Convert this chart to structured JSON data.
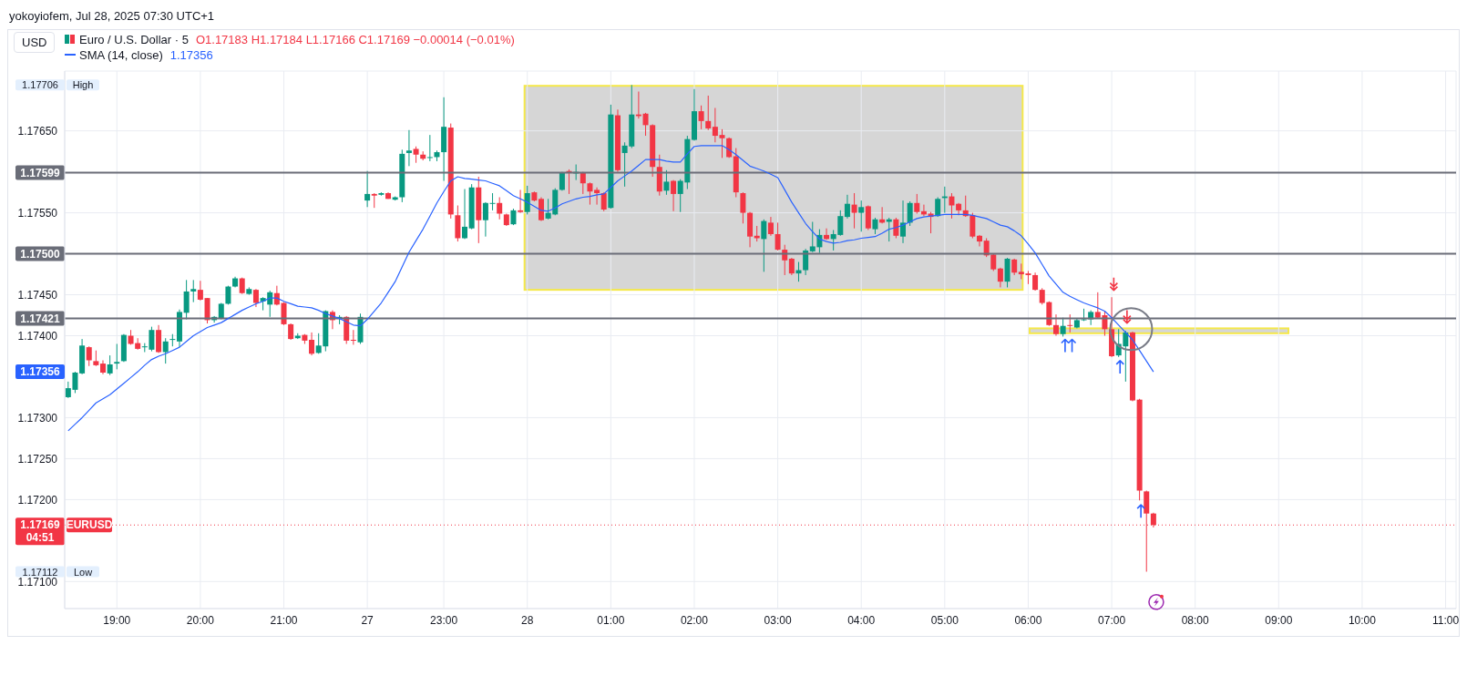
{
  "chart_data": {
    "type": "candlestick",
    "title": "yokoyiofem, Jul 28, 2025 07:30 UTC+1",
    "categories": [
      null,
      null,
      null,
      null,
      null,
      null,
      null,
      "19:00",
      null,
      null,
      null,
      null,
      null,
      null,
      null,
      null,
      null,
      null,
      null,
      "20:00",
      null,
      null,
      null,
      null,
      null,
      null,
      null,
      null,
      null,
      null,
      null,
      "21:00",
      null,
      null,
      null,
      null,
      null,
      null,
      null,
      null,
      null,
      null,
      null,
      "27",
      null,
      null,
      null,
      null,
      null,
      null,
      null,
      null,
      null,
      null,
      "23:00",
      null,
      null,
      null,
      null,
      null,
      null,
      null,
      null,
      null,
      null,
      null,
      "28",
      null,
      null,
      null,
      null,
      null,
      null,
      null,
      null,
      null,
      null,
      null,
      "01:00",
      null,
      null,
      null,
      null,
      null,
      null,
      null,
      null,
      null,
      null,
      null,
      "02:00",
      null,
      null,
      null,
      null,
      null,
      null,
      null,
      null,
      null,
      null,
      null,
      "03:00",
      null,
      null,
      null,
      null,
      null,
      null,
      null,
      null,
      null,
      null,
      null,
      "04:00",
      null,
      null,
      null,
      null,
      null,
      null,
      null,
      null,
      null,
      null,
      null,
      "05:00",
      null,
      null,
      null,
      null,
      null,
      null,
      null,
      null,
      null,
      null,
      null,
      "06:00",
      null,
      null,
      null,
      null,
      null,
      null,
      null,
      null,
      null,
      null,
      null,
      "07:00",
      null,
      null,
      null,
      null,
      null,
      null,
      null,
      null,
      null,
      null,
      null,
      "08:00",
      null,
      null,
      null,
      null,
      null,
      null,
      null,
      null,
      null,
      null,
      null,
      "09:00",
      null,
      null,
      null,
      null,
      null,
      null,
      null,
      null,
      null,
      null,
      null,
      "10:00",
      null,
      null,
      null,
      null,
      null,
      null,
      null,
      null,
      null,
      null,
      null,
      "11:00",
      null
    ],
    "series": [
      {
        "type": "candlestick",
        "name": "Euro / U.S. Dollar · 5",
        "ohlc": [
          [
            1.17325,
            1.17344,
            1.17324,
            1.17336
          ],
          [
            1.17334,
            1.17356,
            1.1733,
            1.17355
          ],
          [
            1.17354,
            1.17396,
            1.17353,
            1.17388
          ],
          [
            1.17386,
            1.17387,
            1.17363,
            1.1737
          ],
          [
            1.17369,
            1.17382,
            1.17363,
            1.17364
          ],
          [
            1.17366,
            1.1737,
            1.17353,
            1.17355
          ],
          [
            1.17354,
            1.17376,
            1.17352,
            1.17365
          ],
          [
            1.17366,
            1.1739,
            1.17359,
            1.17368
          ],
          [
            1.17369,
            1.17402,
            1.17368,
            1.17401
          ],
          [
            1.174,
            1.17407,
            1.17389,
            1.1739
          ],
          [
            1.17391,
            1.17397,
            1.17383,
            1.17384
          ],
          [
            1.17386,
            1.17391,
            1.1738,
            1.17387
          ],
          [
            1.17383,
            1.17411,
            1.17381,
            1.17407
          ],
          [
            1.17407,
            1.17413,
            1.17379,
            1.1738
          ],
          [
            1.1738,
            1.17397,
            1.17366,
            1.17393
          ],
          [
            1.17395,
            1.17402,
            1.17387,
            1.17396
          ],
          [
            1.17393,
            1.17432,
            1.17386,
            1.17429
          ],
          [
            1.17428,
            1.17468,
            1.1742,
            1.17454
          ],
          [
            1.17454,
            1.17468,
            1.17441,
            1.17457
          ],
          [
            1.17456,
            1.17467,
            1.17443,
            1.17444
          ],
          [
            1.17446,
            1.17446,
            1.17415,
            1.17419
          ],
          [
            1.17419,
            1.17424,
            1.17416,
            1.17423
          ],
          [
            1.17421,
            1.1744,
            1.1742,
            1.17439
          ],
          [
            1.17439,
            1.17461,
            1.17438,
            1.1746
          ],
          [
            1.1746,
            1.17472,
            1.17459,
            1.1747
          ],
          [
            1.1747,
            1.17471,
            1.17451,
            1.17452
          ],
          [
            1.17451,
            1.17459,
            1.1745,
            1.17457
          ],
          [
            1.17456,
            1.17457,
            1.17435,
            1.1744
          ],
          [
            1.17442,
            1.17447,
            1.17431,
            1.17446
          ],
          [
            1.17438,
            1.17455,
            1.17423,
            1.17453
          ],
          [
            1.17452,
            1.17461,
            1.17437,
            1.17438
          ],
          [
            1.1744,
            1.17441,
            1.17413,
            1.17414
          ],
          [
            1.17414,
            1.17415,
            1.17395,
            1.17396
          ],
          [
            1.17397,
            1.17403,
            1.17396,
            1.174
          ],
          [
            1.17401,
            1.17402,
            1.1739,
            1.17394
          ],
          [
            1.17395,
            1.17404,
            1.17376,
            1.17378
          ],
          [
            1.17379,
            1.17403,
            1.17378,
            1.17388
          ],
          [
            1.17387,
            1.17431,
            1.17381,
            1.1743
          ],
          [
            1.17429,
            1.17431,
            1.17408,
            1.17419
          ],
          [
            1.17421,
            1.17425,
            1.17414,
            1.17423
          ],
          [
            1.17423,
            1.17424,
            1.1739,
            1.17394
          ],
          [
            1.17395,
            1.17407,
            1.17389,
            1.17394
          ],
          [
            1.17392,
            1.17427,
            1.1739,
            1.17423
          ],
          [
            1.17565,
            1.17601,
            1.17557,
            1.17573
          ],
          [
            1.17573,
            1.17574,
            1.17556,
            1.17571
          ],
          [
            1.17572,
            1.17575,
            1.17571,
            1.17574
          ],
          [
            1.17574,
            1.17575,
            1.17567,
            1.17567
          ],
          [
            1.17566,
            1.1757,
            1.17565,
            1.17569
          ],
          [
            1.17569,
            1.17627,
            1.17563,
            1.17622
          ],
          [
            1.17623,
            1.17651,
            1.17607,
            1.17626
          ],
          [
            1.17628,
            1.17631,
            1.17611,
            1.17621
          ],
          [
            1.17621,
            1.17625,
            1.17614,
            1.17616
          ],
          [
            1.17617,
            1.17645,
            1.17613,
            1.17618
          ],
          [
            1.17618,
            1.17626,
            1.17613,
            1.17624
          ],
          [
            1.17624,
            1.17691,
            1.17589,
            1.17655
          ],
          [
            1.17654,
            1.17659,
            1.17543,
            1.17548
          ],
          [
            1.17547,
            1.17559,
            1.17515,
            1.17519
          ],
          [
            1.17519,
            1.17579,
            1.17518,
            1.17533
          ],
          [
            1.17531,
            1.17585,
            1.1753,
            1.17581
          ],
          [
            1.17581,
            1.17594,
            1.17513,
            1.17541
          ],
          [
            1.17541,
            1.17563,
            1.17521,
            1.17562
          ],
          [
            1.17561,
            1.17574,
            1.17553,
            1.17562
          ],
          [
            1.17562,
            1.17569,
            1.17542,
            1.17549
          ],
          [
            1.17548,
            1.17549,
            1.17534,
            1.17535
          ],
          [
            1.17536,
            1.17555,
            1.17535,
            1.17553
          ],
          [
            1.17553,
            1.17578,
            1.1755,
            1.17551
          ],
          [
            1.17551,
            1.17583,
            1.17548,
            1.17574
          ],
          [
            1.17575,
            1.17576,
            1.17564,
            1.17565
          ],
          [
            1.17567,
            1.17569,
            1.1754,
            1.17541
          ],
          [
            1.17543,
            1.17567,
            1.17542,
            1.1755
          ],
          [
            1.17548,
            1.1758,
            1.17547,
            1.17578
          ],
          [
            1.17578,
            1.176,
            1.17577,
            1.17599
          ],
          [
            1.17601,
            1.17603,
            1.17573,
            1.17599
          ],
          [
            1.17598,
            1.17609,
            1.1759,
            1.176
          ],
          [
            1.17599,
            1.176,
            1.17573,
            1.17586
          ],
          [
            1.17586,
            1.17587,
            1.1756,
            1.17576
          ],
          [
            1.17578,
            1.17581,
            1.1756,
            1.17574
          ],
          [
            1.17574,
            1.17575,
            1.17552,
            1.17554
          ],
          [
            1.17556,
            1.17682,
            1.17555,
            1.1767
          ],
          [
            1.17669,
            1.17676,
            1.176,
            1.17602
          ],
          [
            1.17623,
            1.17636,
            1.17582,
            1.17632
          ],
          [
            1.17631,
            1.17706,
            1.17629,
            1.1767
          ],
          [
            1.1767,
            1.17698,
            1.17665,
            1.17668
          ],
          [
            1.17671,
            1.17672,
            1.17644,
            1.17657
          ],
          [
            1.17657,
            1.17658,
            1.17594,
            1.17606
          ],
          [
            1.17606,
            1.17621,
            1.17571,
            1.17576
          ],
          [
            1.17577,
            1.17602,
            1.17572,
            1.17588
          ],
          [
            1.17589,
            1.1759,
            1.17552,
            1.17573
          ],
          [
            1.17573,
            1.17591,
            1.17551,
            1.17589
          ],
          [
            1.17587,
            1.17644,
            1.17579,
            1.1764
          ],
          [
            1.17639,
            1.17701,
            1.17638,
            1.17674
          ],
          [
            1.17674,
            1.17681,
            1.17652,
            1.17662
          ],
          [
            1.17662,
            1.17693,
            1.17651,
            1.17653
          ],
          [
            1.17655,
            1.17678,
            1.17636,
            1.17644
          ],
          [
            1.17645,
            1.17652,
            1.17617,
            1.17641
          ],
          [
            1.17641,
            1.17642,
            1.17617,
            1.17618
          ],
          [
            1.17619,
            1.17629,
            1.17569,
            1.17575
          ],
          [
            1.17574,
            1.17575,
            1.17537,
            1.1755
          ],
          [
            1.1755,
            1.17551,
            1.17508,
            1.17521
          ],
          [
            1.17522,
            1.17534,
            1.17515,
            1.17519
          ],
          [
            1.17518,
            1.17542,
            1.17478,
            1.1754
          ],
          [
            1.17538,
            1.17545,
            1.17522,
            1.17524
          ],
          [
            1.17524,
            1.17538,
            1.17504,
            1.17505
          ],
          [
            1.17505,
            1.17511,
            1.17474,
            1.17492
          ],
          [
            1.17494,
            1.17495,
            1.17474,
            1.17476
          ],
          [
            1.17476,
            1.1749,
            1.17466,
            1.1748
          ],
          [
            1.1748,
            1.17506,
            1.17474,
            1.17504
          ],
          [
            1.17503,
            1.17539,
            1.17502,
            1.17509
          ],
          [
            1.17508,
            1.1753,
            1.17501,
            1.17523
          ],
          [
            1.17523,
            1.17531,
            1.17517,
            1.17518
          ],
          [
            1.17518,
            1.17529,
            1.17504,
            1.17524
          ],
          [
            1.17523,
            1.17553,
            1.17522,
            1.17546
          ],
          [
            1.17545,
            1.17572,
            1.17543,
            1.17561
          ],
          [
            1.1756,
            1.17574,
            1.17531,
            1.1755
          ],
          [
            1.1755,
            1.17565,
            1.17527,
            1.17557
          ],
          [
            1.17558,
            1.17559,
            1.17529,
            1.17531
          ],
          [
            1.1753,
            1.17544,
            1.17524,
            1.17542
          ],
          [
            1.17542,
            1.17557,
            1.17537,
            1.17538
          ],
          [
            1.17539,
            1.17544,
            1.17515,
            1.17542
          ],
          [
            1.17542,
            1.17544,
            1.17519,
            1.17522
          ],
          [
            1.17521,
            1.17565,
            1.17513,
            1.17538
          ],
          [
            1.17538,
            1.17564,
            1.17534,
            1.17562
          ],
          [
            1.17562,
            1.17573,
            1.17549,
            1.17551
          ],
          [
            1.17552,
            1.1756,
            1.17546,
            1.17548
          ],
          [
            1.17549,
            1.17551,
            1.17525,
            1.17545
          ],
          [
            1.17546,
            1.17569,
            1.17545,
            1.17567
          ],
          [
            1.17568,
            1.17582,
            1.1755,
            1.1757
          ],
          [
            1.1757,
            1.17574,
            1.17543,
            1.17559
          ],
          [
            1.17561,
            1.17562,
            1.17547,
            1.17553
          ],
          [
            1.17553,
            1.17571,
            1.17545,
            1.17546
          ],
          [
            1.17547,
            1.1755,
            1.17519,
            1.17521
          ],
          [
            1.17522,
            1.17523,
            1.17509,
            1.17515
          ],
          [
            1.17516,
            1.17519,
            1.17496,
            1.17498
          ],
          [
            1.17499,
            1.175,
            1.17479,
            1.17481
          ],
          [
            1.17482,
            1.17483,
            1.17459,
            1.17466
          ],
          [
            1.17466,
            1.17495,
            1.17459,
            1.17494
          ],
          [
            1.17493,
            1.17494,
            1.17474,
            1.17477
          ],
          [
            1.17478,
            1.17488,
            1.17469,
            1.17475
          ],
          [
            1.17476,
            1.17479,
            1.17463,
            1.17474
          ],
          [
            1.17474,
            1.17477,
            1.17455,
            1.17456
          ],
          [
            1.17456,
            1.17458,
            1.17438,
            1.1744
          ],
          [
            1.17441,
            1.17442,
            1.17412,
            1.17413
          ],
          [
            1.17413,
            1.17426,
            1.174,
            1.17402
          ],
          [
            1.17402,
            1.17422,
            1.17399,
            1.17412
          ],
          [
            1.17413,
            1.17426,
            1.17404,
            1.17412
          ],
          [
            1.1741,
            1.17421,
            1.17409,
            1.17419
          ],
          [
            1.17419,
            1.17433,
            1.17418,
            1.1742
          ],
          [
            1.1742,
            1.17431,
            1.17413,
            1.17429
          ],
          [
            1.17429,
            1.17453,
            1.17421,
            1.17422
          ],
          [
            1.17425,
            1.1743,
            1.174,
            1.17408
          ],
          [
            1.17408,
            1.17447,
            1.17374,
            1.17375
          ],
          [
            1.17376,
            1.17408,
            1.17374,
            1.1739
          ],
          [
            1.17387,
            1.17406,
            1.17344,
            1.17404
          ],
          [
            1.17404,
            1.17405,
            1.1732,
            1.17321
          ],
          [
            1.17322,
            1.17323,
            1.17199,
            1.17211
          ],
          [
            1.1721,
            1.17211,
            1.17112,
            1.17183
          ],
          [
            1.17183,
            1.17184,
            1.17166,
            1.17169
          ],
          null,
          null,
          null,
          null,
          null,
          null,
          null,
          null,
          null,
          null,
          null,
          null,
          null,
          null,
          null,
          null,
          null,
          null,
          null,
          null,
          null,
          null,
          null,
          null,
          null,
          null,
          null,
          null,
          null,
          null,
          null,
          null,
          null,
          null,
          null,
          null,
          null,
          null,
          null,
          null,
          null,
          null,
          null
        ],
        "colors": [
          "#089981",
          "#089981",
          "#089981",
          "#f23645",
          "#f23645",
          "#f23645",
          "#089981",
          "#089981",
          "#089981",
          "#f23645",
          "#f23645",
          "#089981",
          "#089981",
          "#f23645",
          "#089981",
          "#089981",
          "#089981",
          "#089981",
          "#089981",
          "#f23645",
          "#f23645",
          "#089981",
          "#089981",
          "#089981",
          "#089981",
          "#f23645",
          "#089981",
          "#f23645",
          "#089981",
          "#089981",
          "#f23645",
          "#f23645",
          "#f23645",
          "#089981",
          "#f23645",
          "#f23645",
          "#089981",
          "#089981",
          "#f23645",
          "#089981",
          "#f23645",
          "#f23645",
          "#089981",
          "#089981",
          "#f23645",
          "#089981",
          "#f23645",
          "#089981",
          "#089981",
          "#089981",
          "#f23645",
          "#f23645",
          "#089981",
          "#089981",
          "#089981",
          "#f23645",
          "#f23645",
          "#089981",
          "#089981",
          "#f23645",
          "#089981",
          "#089981",
          "#f23645",
          "#f23645",
          "#089981",
          "#f23645",
          "#089981",
          "#f23645",
          "#f23645",
          "#089981",
          "#089981",
          "#089981",
          "#f23645",
          "#089981",
          "#f23645",
          "#f23645",
          "#f23645",
          "#f23645",
          "#089981",
          "#f23645",
          "#089981",
          "#089981",
          "#f23645",
          "#f23645",
          "#f23645",
          "#f23645",
          "#089981",
          "#f23645",
          "#089981",
          "#089981",
          "#089981",
          "#f23645",
          "#f23645",
          "#f23645",
          "#f23645",
          "#f23645",
          "#f23645",
          "#f23645",
          "#f23645",
          "#f23645",
          "#089981",
          "#f23645",
          "#f23645",
          "#f23645",
          "#f23645",
          "#089981",
          "#089981",
          "#089981",
          "#089981",
          "#f23645",
          "#089981",
          "#089981",
          "#089981",
          "#f23645",
          "#089981",
          "#f23645",
          "#089981",
          "#f23645",
          "#089981",
          "#f23645",
          "#089981",
          "#089981",
          "#f23645",
          "#f23645",
          "#f23645",
          "#089981",
          "#089981",
          "#f23645",
          "#f23645",
          "#f23645",
          "#f23645",
          "#f23645",
          "#f23645",
          "#f23645",
          "#f23645",
          "#089981",
          "#f23645",
          "#f23645",
          "#f23645",
          "#f23645",
          "#f23645",
          "#f23645",
          "#f23645",
          "#089981",
          "#f23645",
          "#089981",
          "#089981",
          "#089981",
          "#f23645",
          "#f23645",
          "#f23645",
          "#089981",
          "#089981",
          "#f23645",
          "#f23645",
          "#f23645",
          "#f23645",
          null,
          null,
          null,
          null,
          null,
          null,
          null,
          null,
          null,
          null,
          null,
          null,
          null,
          null,
          null,
          null,
          null,
          null,
          null,
          null,
          null,
          null,
          null,
          null,
          null,
          null,
          null,
          null,
          null,
          null,
          null,
          null,
          null,
          null,
          null,
          null,
          null,
          null,
          null,
          null,
          null,
          null,
          null
        ]
      },
      {
        "type": "line",
        "name": "SMA (14, close)",
        "color": "#2962ff",
        "values": [
          1.17284,
          1.17292,
          1.173,
          1.17309,
          1.17318,
          1.17323,
          1.17328,
          1.17335,
          1.17342,
          1.17349,
          1.17356,
          1.17364,
          1.17371,
          1.17375,
          1.17378,
          1.17382,
          1.17386,
          1.17393,
          1.174,
          1.17405,
          1.1741,
          1.17413,
          1.17416,
          1.17421,
          1.17426,
          1.17431,
          1.17435,
          1.17439,
          1.17442,
          1.17446,
          1.17446,
          1.17442,
          1.17439,
          1.17436,
          1.17435,
          1.17434,
          1.17431,
          1.17427,
          1.17424,
          1.17421,
          1.17417,
          1.17413,
          1.17412,
          1.1742,
          1.1743,
          1.1744,
          1.17453,
          1.17466,
          1.17484,
          1.17502,
          1.17516,
          1.1753,
          1.17546,
          1.17562,
          1.17576,
          1.17589,
          1.17594,
          1.17592,
          1.17591,
          1.1759,
          1.17589,
          1.17586,
          1.17583,
          1.17577,
          1.17571,
          1.17567,
          1.17563,
          1.17558,
          1.17553,
          1.17552,
          1.17556,
          1.17561,
          1.17564,
          1.17567,
          1.17569,
          1.1757,
          1.17572,
          1.17573,
          1.17581,
          1.17589,
          1.17595,
          1.17601,
          1.17608,
          1.17615,
          1.17615,
          1.17615,
          1.17613,
          1.17612,
          1.17612,
          1.17622,
          1.17631,
          1.17632,
          1.17632,
          1.17632,
          1.17632,
          1.17627,
          1.17621,
          1.17614,
          1.17607,
          1.17604,
          1.17601,
          1.17597,
          1.17593,
          1.17578,
          1.17563,
          1.1755,
          1.17537,
          1.17527,
          1.17518,
          1.17515,
          1.17513,
          1.17514,
          1.17516,
          1.17517,
          1.17519,
          1.1752,
          1.17521,
          1.17525,
          1.1753,
          1.17532,
          1.17535,
          1.17539,
          1.17543,
          1.17545,
          1.17546,
          1.17547,
          1.17548,
          1.17548,
          1.17548,
          1.17548,
          1.17547,
          1.17545,
          1.17543,
          1.17539,
          1.17535,
          1.17533,
          1.17528,
          1.17522,
          1.17512,
          1.17501,
          1.17487,
          1.17473,
          1.17463,
          1.17453,
          1.17448,
          1.17444,
          1.1744,
          1.17437,
          1.17434,
          1.1743,
          1.17422,
          1.17413,
          1.17404,
          1.17395,
          1.17382,
          1.17369,
          1.17356,
          null,
          null,
          null,
          null,
          null,
          null,
          null,
          null,
          null,
          null,
          null,
          null,
          null,
          null,
          null,
          null,
          null,
          null,
          null,
          null,
          null,
          null,
          null,
          null,
          null,
          null,
          null,
          null,
          null,
          null,
          null,
          null,
          null,
          null,
          null,
          null,
          null,
          null,
          null,
          null,
          null,
          null,
          null
        ]
      }
    ],
    "ylim": [
      1.17067,
      1.17723
    ],
    "yticks": [
      {
        "value": 1.171,
        "label": "1.17100"
      },
      {
        "value": 1.172,
        "label": "1.17200"
      },
      {
        "value": 1.1725,
        "label": "1.17250"
      },
      {
        "value": 1.173,
        "label": "1.17300"
      },
      {
        "value": 1.174,
        "label": "1.17400"
      },
      {
        "value": 1.1745,
        "label": "1.17450"
      },
      {
        "value": 1.1755,
        "label": "1.17550"
      },
      {
        "value": 1.1765,
        "label": "1.17650"
      }
    ],
    "ref_lines": [
      {
        "axis": "y",
        "value": 1.17599,
        "label": "1.17599",
        "color": "#6a6d78",
        "line_style": "solid"
      },
      {
        "axis": "y",
        "value": 1.175,
        "label": "1.17500",
        "color": "#6a6d78",
        "line_style": "solid"
      },
      {
        "axis": "y",
        "value": 1.17421,
        "label": "1.17421",
        "color": "#6a6d78",
        "line_style": "solid"
      },
      {
        "axis": "y",
        "value": 1.17169,
        "label": "1.17169",
        "color": "#f23645",
        "line_style": "dotted"
      }
    ],
    "annotations": [
      "USD",
      "O1.17183 H1.17184 L1.17166 C1.17169 −0.00014 (−0.01%)",
      "04:51",
      "EURUSD",
      "1.17356",
      "1.17706",
      "High",
      "1.17112",
      "Low",
      "1.17356"
    ],
    "grid": true,
    "legend": "top left",
    "marker": "none",
    "line_style": "solid"
  }
}
